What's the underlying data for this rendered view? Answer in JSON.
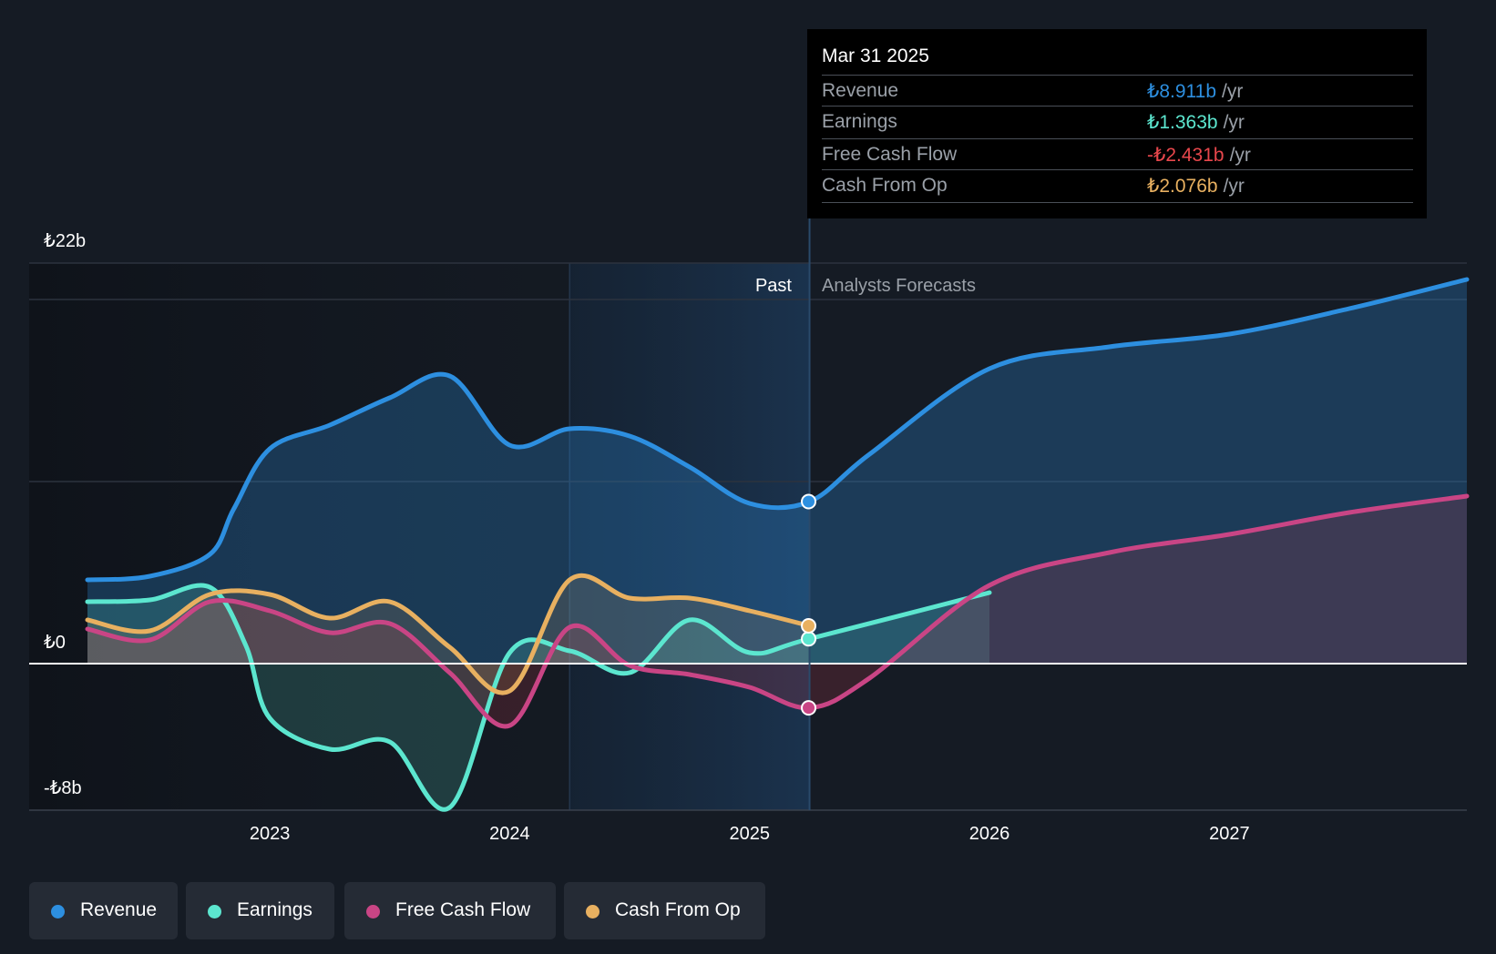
{
  "chart_data": {
    "type": "line",
    "currency_symbol": "₺",
    "y_labels": {
      "top": "₺22b",
      "zero": "₺0",
      "bottom": "-₺8b"
    },
    "ylim": [
      -8,
      22
    ],
    "xlim": [
      2022.24,
      2027.99
    ],
    "x_ticks": [
      {
        "value": 2023,
        "label": "2023"
      },
      {
        "value": 2024,
        "label": "2024"
      },
      {
        "value": 2025,
        "label": "2025"
      },
      {
        "value": 2026,
        "label": "2026"
      },
      {
        "value": 2027,
        "label": "2027"
      }
    ],
    "past_label": "Past",
    "forecast_label": "Analysts Forecasts",
    "divider_x": 2025.25,
    "highlight_start_x": 2024.25,
    "series": [
      {
        "name": "Revenue",
        "color": "#2d8fe0",
        "forecast_end": 2027.99,
        "points": [
          [
            2022.24,
            4.6
          ],
          [
            2022.5,
            4.8
          ],
          [
            2022.75,
            6.0
          ],
          [
            2022.85,
            8.5
          ],
          [
            2023.0,
            11.8
          ],
          [
            2023.25,
            13.1
          ],
          [
            2023.5,
            14.6
          ],
          [
            2023.75,
            15.8
          ],
          [
            2024.0,
            12.0
          ],
          [
            2024.25,
            12.9
          ],
          [
            2024.5,
            12.5
          ],
          [
            2024.75,
            10.8
          ],
          [
            2025.0,
            8.8
          ],
          [
            2025.25,
            8.9
          ],
          [
            2025.5,
            11.5
          ],
          [
            2026.0,
            16.2
          ],
          [
            2026.5,
            17.4
          ],
          [
            2027.0,
            18.1
          ],
          [
            2027.5,
            19.5
          ],
          [
            2027.99,
            21.1
          ]
        ]
      },
      {
        "name": "Earnings",
        "color": "#5ce6cf",
        "forecast_end": 2026.0,
        "points": [
          [
            2022.24,
            3.4
          ],
          [
            2022.5,
            3.5
          ],
          [
            2022.75,
            4.2
          ],
          [
            2022.9,
            1.0
          ],
          [
            2023.0,
            -3.0
          ],
          [
            2023.25,
            -4.7
          ],
          [
            2023.5,
            -4.3
          ],
          [
            2023.75,
            -7.9
          ],
          [
            2024.0,
            0.6
          ],
          [
            2024.25,
            0.7
          ],
          [
            2024.5,
            -0.5
          ],
          [
            2024.75,
            2.4
          ],
          [
            2025.0,
            0.6
          ],
          [
            2025.25,
            1.363
          ],
          [
            2026.0,
            3.9
          ]
        ]
      },
      {
        "name": "Free Cash Flow",
        "color": "#c94585",
        "forecast_end": 2027.99,
        "points": [
          [
            2022.24,
            1.9
          ],
          [
            2022.5,
            1.3
          ],
          [
            2022.75,
            3.4
          ],
          [
            2023.0,
            2.9
          ],
          [
            2023.25,
            1.7
          ],
          [
            2023.5,
            2.2
          ],
          [
            2023.75,
            -0.5
          ],
          [
            2024.0,
            -3.4
          ],
          [
            2024.25,
            2.0
          ],
          [
            2024.5,
            -0.1
          ],
          [
            2024.75,
            -0.6
          ],
          [
            2025.0,
            -1.3
          ],
          [
            2025.25,
            -2.431
          ],
          [
            2025.5,
            -0.8
          ],
          [
            2026.0,
            4.3
          ],
          [
            2026.5,
            6.1
          ],
          [
            2027.0,
            7.1
          ],
          [
            2027.5,
            8.3
          ],
          [
            2027.99,
            9.2
          ]
        ]
      },
      {
        "name": "Cash From Op",
        "color": "#e8b060",
        "forecast_end": 2025.25,
        "points": [
          [
            2022.24,
            2.4
          ],
          [
            2022.5,
            1.8
          ],
          [
            2022.75,
            3.8
          ],
          [
            2023.0,
            3.8
          ],
          [
            2023.25,
            2.5
          ],
          [
            2023.5,
            3.4
          ],
          [
            2023.75,
            0.9
          ],
          [
            2024.0,
            -1.5
          ],
          [
            2024.25,
            4.6
          ],
          [
            2024.5,
            3.6
          ],
          [
            2024.75,
            3.6
          ],
          [
            2025.0,
            2.9
          ],
          [
            2025.25,
            2.076
          ]
        ]
      }
    ]
  },
  "tooltip": {
    "date": "Mar 31 2025",
    "rows": [
      {
        "name": "Revenue",
        "value": "₺8.911b",
        "unit": "/yr",
        "color": "#2d8fe0"
      },
      {
        "name": "Earnings",
        "value": "₺1.363b",
        "unit": "/yr",
        "color": "#5ce6cf"
      },
      {
        "name": "Free Cash Flow",
        "value": "-₺2.431b",
        "unit": "/yr",
        "color": "#e8474c"
      },
      {
        "name": "Cash From Op",
        "value": "₺2.076b",
        "unit": "/yr",
        "color": "#e8b060"
      }
    ]
  },
  "legend": [
    {
      "label": "Revenue",
      "color": "#2d8fe0"
    },
    {
      "label": "Earnings",
      "color": "#5ce6cf"
    },
    {
      "label": "Free Cash Flow",
      "color": "#c94585"
    },
    {
      "label": "Cash From Op",
      "color": "#e8b060"
    }
  ]
}
